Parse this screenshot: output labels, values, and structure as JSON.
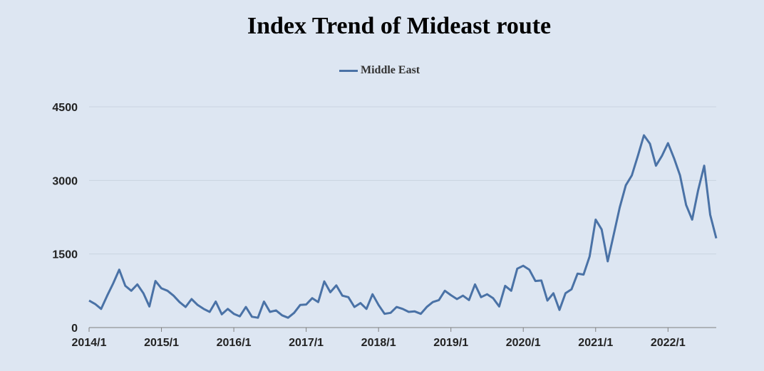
{
  "chart_data": {
    "type": "line",
    "title": "Index Trend of Mideast route",
    "xlabel": "",
    "ylabel": "",
    "ylim": [
      0,
      4500
    ],
    "yticks": [
      "0",
      "1500",
      "3000",
      "4500"
    ],
    "xticks": [
      "2014/1",
      "2015/1",
      "2016/1",
      "2017/1",
      "2018/1",
      "2019/1",
      "2020/1",
      "2021/1",
      "2022/1"
    ],
    "grid": true,
    "legend_position": "top-center",
    "colors": {
      "series": "#4a72a6",
      "background": "#dde6f2",
      "grid": "#c9d3e0"
    },
    "series": [
      {
        "name": "Middle East",
        "points": [
          [
            "2014/01",
            550
          ],
          [
            "2014/02",
            480
          ],
          [
            "2014/03",
            380
          ],
          [
            "2014/04",
            650
          ],
          [
            "2014/05",
            900
          ],
          [
            "2014/06",
            1180
          ],
          [
            "2014/07",
            850
          ],
          [
            "2014/08",
            750
          ],
          [
            "2014/09",
            880
          ],
          [
            "2014/10",
            700
          ],
          [
            "2014/11",
            430
          ],
          [
            "2014/12",
            950
          ],
          [
            "2015/01",
            800
          ],
          [
            "2015/02",
            750
          ],
          [
            "2015/03",
            650
          ],
          [
            "2015/04",
            520
          ],
          [
            "2015/05",
            420
          ],
          [
            "2015/06",
            580
          ],
          [
            "2015/07",
            460
          ],
          [
            "2015/08",
            380
          ],
          [
            "2015/09",
            320
          ],
          [
            "2015/10",
            530
          ],
          [
            "2015/11",
            270
          ],
          [
            "2015/12",
            380
          ],
          [
            "2016/01",
            280
          ],
          [
            "2016/02",
            230
          ],
          [
            "2016/03",
            420
          ],
          [
            "2016/04",
            220
          ],
          [
            "2016/05",
            200
          ],
          [
            "2016/06",
            530
          ],
          [
            "2016/07",
            320
          ],
          [
            "2016/08",
            350
          ],
          [
            "2016/09",
            250
          ],
          [
            "2016/10",
            200
          ],
          [
            "2016/11",
            300
          ],
          [
            "2016/12",
            460
          ],
          [
            "2017/01",
            470
          ],
          [
            "2017/02",
            600
          ],
          [
            "2017/03",
            520
          ],
          [
            "2017/04",
            940
          ],
          [
            "2017/05",
            720
          ],
          [
            "2017/06",
            860
          ],
          [
            "2017/07",
            650
          ],
          [
            "2017/08",
            620
          ],
          [
            "2017/09",
            420
          ],
          [
            "2017/10",
            500
          ],
          [
            "2017/11",
            380
          ],
          [
            "2017/12",
            680
          ],
          [
            "2018/01",
            460
          ],
          [
            "2018/02",
            280
          ],
          [
            "2018/03",
            300
          ],
          [
            "2018/04",
            420
          ],
          [
            "2018/05",
            380
          ],
          [
            "2018/06",
            320
          ],
          [
            "2018/07",
            330
          ],
          [
            "2018/08",
            280
          ],
          [
            "2018/09",
            420
          ],
          [
            "2018/10",
            520
          ],
          [
            "2018/11",
            560
          ],
          [
            "2018/12",
            750
          ],
          [
            "2019/01",
            660
          ],
          [
            "2019/02",
            580
          ],
          [
            "2019/03",
            650
          ],
          [
            "2019/04",
            560
          ],
          [
            "2019/05",
            880
          ],
          [
            "2019/06",
            620
          ],
          [
            "2019/07",
            680
          ],
          [
            "2019/08",
            600
          ],
          [
            "2019/09",
            430
          ],
          [
            "2019/10",
            850
          ],
          [
            "2019/11",
            750
          ],
          [
            "2019/12",
            1200
          ],
          [
            "2020/01",
            1260
          ],
          [
            "2020/02",
            1180
          ],
          [
            "2020/03",
            950
          ],
          [
            "2020/04",
            960
          ],
          [
            "2020/05",
            550
          ],
          [
            "2020/06",
            700
          ],
          [
            "2020/07",
            360
          ],
          [
            "2020/08",
            700
          ],
          [
            "2020/09",
            780
          ],
          [
            "2020/10",
            1100
          ],
          [
            "2020/11",
            1080
          ],
          [
            "2020/12",
            1450
          ],
          [
            "2021/01",
            2200
          ],
          [
            "2021/02",
            2000
          ],
          [
            "2021/03",
            1350
          ],
          [
            "2021/04",
            1900
          ],
          [
            "2021/05",
            2450
          ],
          [
            "2021/06",
            2900
          ],
          [
            "2021/07",
            3100
          ],
          [
            "2021/08",
            3500
          ],
          [
            "2021/09",
            3920
          ],
          [
            "2021/10",
            3750
          ],
          [
            "2021/11",
            3300
          ],
          [
            "2021/12",
            3500
          ],
          [
            "2022/01",
            3760
          ],
          [
            "2022/02",
            3450
          ],
          [
            "2022/03",
            3100
          ],
          [
            "2022/04",
            2500
          ],
          [
            "2022/05",
            2200
          ],
          [
            "2022/06",
            2800
          ],
          [
            "2022/07",
            3300
          ],
          [
            "2022/08",
            2300
          ],
          [
            "2022/09",
            1820
          ]
        ]
      }
    ]
  }
}
